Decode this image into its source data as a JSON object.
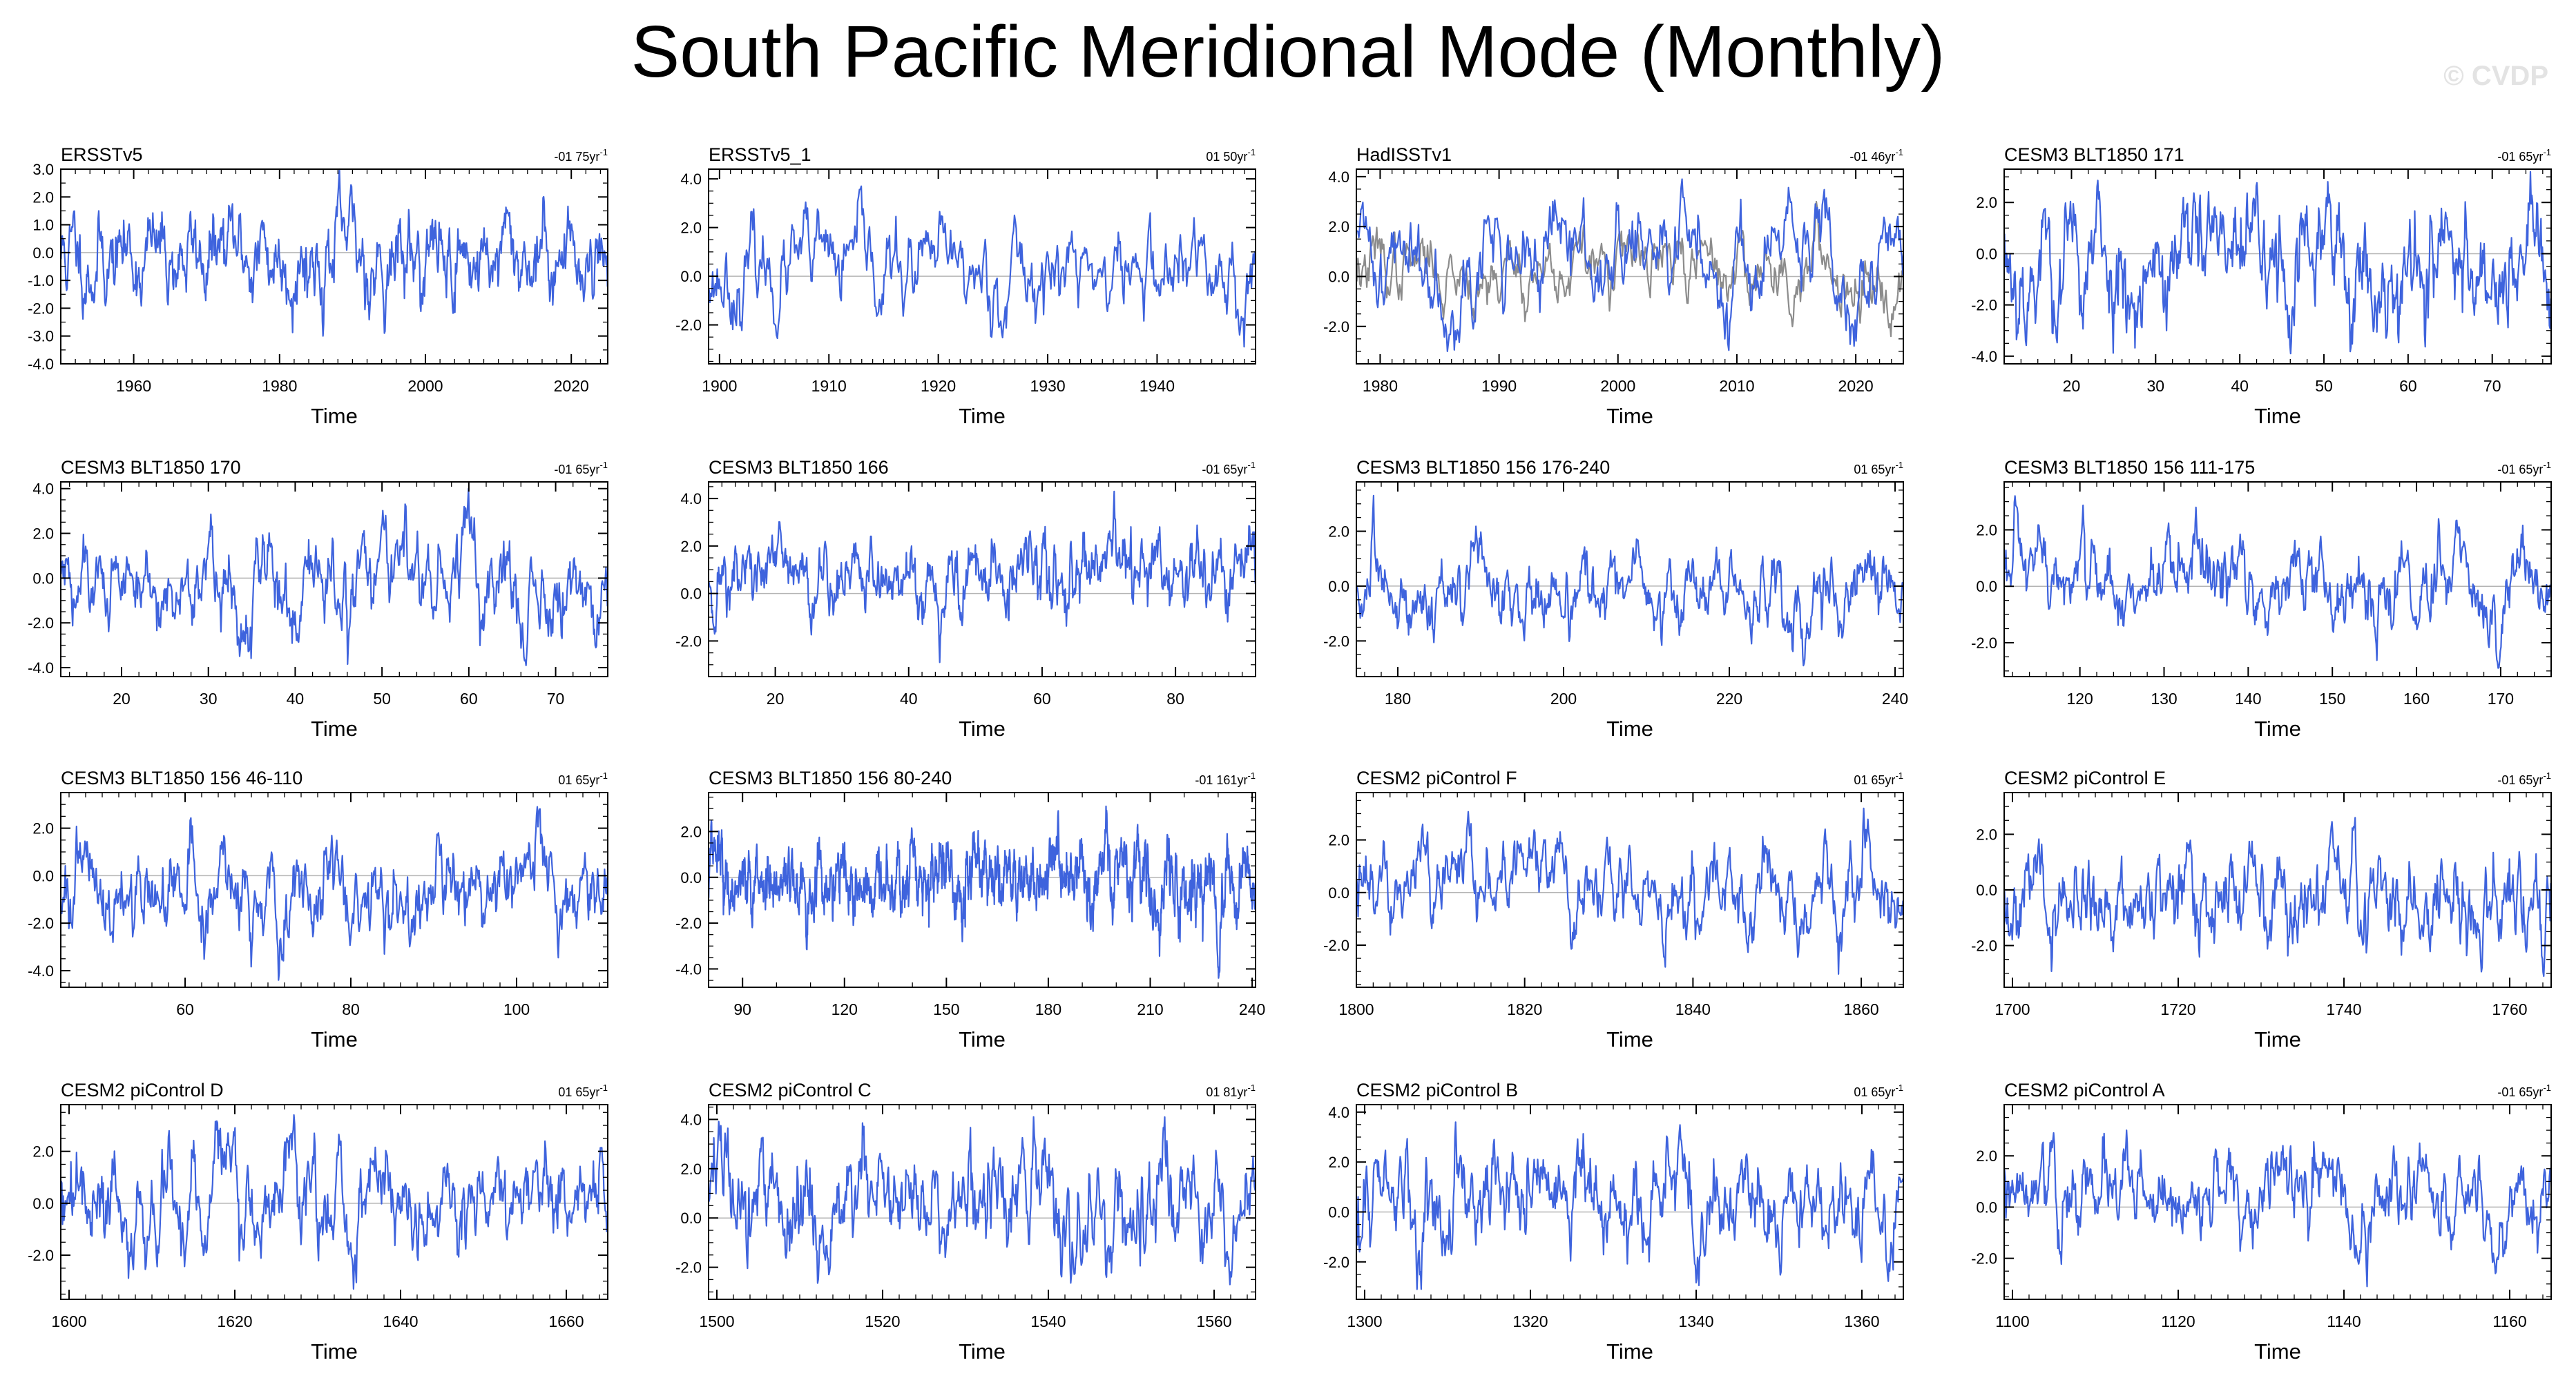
{
  "page": {
    "title": "South Pacific Meridional Mode (Monthly)",
    "watermark": "© CVDP"
  },
  "style": {
    "line_color": "#3e63dd",
    "obs_overlay_color": "#8c8c8c",
    "axis_color": "#000000",
    "zero_line_color": "#b4b4b4"
  },
  "chart_data": [
    {
      "type": "line",
      "title": "ERSSTv5",
      "trend_value": "-01 75",
      "trend_unit": "yr",
      "trend_exp": "-1",
      "xlabel": "Time",
      "xlim": [
        1950,
        2025
      ],
      "ylim": [
        -4.0,
        3.0
      ],
      "xticks": [
        1960,
        1980,
        2000,
        2020
      ],
      "yticks": [
        3.0,
        2.0,
        1.0,
        0.0,
        -1.0,
        -2.0,
        -3.0,
        -4.0
      ],
      "ytick_labels": [
        "3.0",
        "2.0",
        "1.0",
        "0.0",
        "-1.0",
        "-2.0",
        "-3.0",
        "-4.0"
      ],
      "series": [
        {
          "color": "#3e63dd",
          "amp": 0.95,
          "min": -3.0,
          "max": 3.0,
          "n": 900,
          "seed": 11
        }
      ]
    },
    {
      "type": "line",
      "title": "ERSSTv5_1",
      "trend_value": "01 50",
      "trend_unit": "yr",
      "trend_exp": "-1",
      "xlabel": "Time",
      "xlim": [
        1899,
        1949
      ],
      "ylim": [
        -3.6,
        4.4
      ],
      "xticks": [
        1900,
        1910,
        1920,
        1930,
        1940
      ],
      "yticks": [
        4.0,
        2.0,
        0.0,
        -2.0
      ],
      "ytick_labels": [
        "4.0",
        "2.0",
        "0.0",
        "-2.0"
      ],
      "series": [
        {
          "color": "#3e63dd",
          "amp": 0.9,
          "min": -2.9,
          "max": 3.7,
          "n": 600,
          "seed": 23
        }
      ]
    },
    {
      "type": "line",
      "title": "HadISSTv1",
      "trend_value": "-01 46",
      "trend_unit": "yr",
      "trend_exp": "-1",
      "xlabel": "Time",
      "xlim": [
        1978,
        2024
      ],
      "ylim": [
        -3.5,
        4.3
      ],
      "xticks": [
        1980,
        1990,
        2000,
        2010,
        2020
      ],
      "yticks": [
        4.0,
        2.0,
        0.0,
        -2.0
      ],
      "ytick_labels": [
        "4.0",
        "2.0",
        "0.0",
        "-2.0"
      ],
      "series": [
        {
          "color": "#8c8c8c",
          "amp": 0.9,
          "min": -2.4,
          "max": 3.0,
          "n": 550,
          "seed": 37
        },
        {
          "color": "#3e63dd",
          "amp": 0.95,
          "min": -3.0,
          "max": 3.9,
          "n": 550,
          "seed": 41
        }
      ]
    },
    {
      "type": "line",
      "title": "CESM3 BLT1850 171",
      "trend_value": "-01 65",
      "trend_unit": "yr",
      "trend_exp": "-1",
      "xlabel": "Time",
      "xlim": [
        12,
        77
      ],
      "ylim": [
        -4.3,
        3.3
      ],
      "xticks": [
        20,
        30,
        40,
        50,
        60,
        70
      ],
      "yticks": [
        2.0,
        0.0,
        -2.0,
        -4.0
      ],
      "ytick_labels": [
        "2.0",
        "0.0",
        "-2.0",
        "-4.0"
      ],
      "series": [
        {
          "color": "#3e63dd",
          "amp": 0.9,
          "min": -3.9,
          "max": 3.2,
          "n": 780,
          "seed": 53
        }
      ]
    },
    {
      "type": "line",
      "title": "CESM3 BLT1850 170",
      "trend_value": "-01 65",
      "trend_unit": "yr",
      "trend_exp": "-1",
      "xlabel": "Time",
      "xlim": [
        13,
        76
      ],
      "ylim": [
        -4.4,
        4.3
      ],
      "xticks": [
        20,
        30,
        40,
        50,
        60,
        70
      ],
      "yticks": [
        4.0,
        2.0,
        0.0,
        -2.0,
        -4.0
      ],
      "ytick_labels": [
        "4.0",
        "2.0",
        "0.0",
        "-2.0",
        "-4.0"
      ],
      "series": [
        {
          "color": "#3e63dd",
          "amp": 0.95,
          "min": -3.9,
          "max": 4.0,
          "n": 760,
          "seed": 61
        }
      ]
    },
    {
      "type": "line",
      "title": "CESM3 BLT1850 166",
      "trend_value": "-01 65",
      "trend_unit": "yr",
      "trend_exp": "-1",
      "xlabel": "Time",
      "xlim": [
        10,
        92
      ],
      "ylim": [
        -3.5,
        4.7
      ],
      "xticks": [
        20,
        40,
        60,
        80
      ],
      "yticks": [
        4.0,
        2.0,
        0.0,
        -2.0
      ],
      "ytick_labels": [
        "4.0",
        "2.0",
        "0.0",
        "-2.0"
      ],
      "series": [
        {
          "color": "#3e63dd",
          "amp": 0.95,
          "min": -2.9,
          "max": 4.3,
          "n": 950,
          "seed": 71
        }
      ]
    },
    {
      "type": "line",
      "title": "CESM3 BLT1850 156 176-240",
      "trend_value": "01 65",
      "trend_unit": "yr",
      "trend_exp": "-1",
      "xlabel": "Time",
      "xlim": [
        175,
        241
      ],
      "ylim": [
        -3.3,
        3.8
      ],
      "xticks": [
        180,
        200,
        220,
        240
      ],
      "yticks": [
        2.0,
        0.0,
        -2.0
      ],
      "ytick_labels": [
        "2.0",
        "0.0",
        "-2.0"
      ],
      "series": [
        {
          "color": "#3e63dd",
          "amp": 0.9,
          "min": -2.9,
          "max": 3.3,
          "n": 780,
          "seed": 83
        }
      ]
    },
    {
      "type": "line",
      "title": "CESM3 BLT1850 156 111-175",
      "trend_value": "-01 65",
      "trend_unit": "yr",
      "trend_exp": "-1",
      "xlabel": "Time",
      "xlim": [
        111,
        176
      ],
      "ylim": [
        -3.2,
        3.7
      ],
      "xticks": [
        120,
        130,
        140,
        150,
        160,
        170
      ],
      "yticks": [
        2.0,
        0.0,
        -2.0
      ],
      "ytick_labels": [
        "2.0",
        "0.0",
        "-2.0"
      ],
      "series": [
        {
          "color": "#3e63dd",
          "amp": 0.9,
          "min": -2.9,
          "max": 3.2,
          "n": 780,
          "seed": 97
        }
      ]
    },
    {
      "type": "line",
      "title": "CESM3 BLT1850 156 46-110",
      "trend_value": "01 65",
      "trend_unit": "yr",
      "trend_exp": "-1",
      "xlabel": "Time",
      "xlim": [
        45,
        111
      ],
      "ylim": [
        -4.7,
        3.5
      ],
      "xticks": [
        60,
        80,
        100
      ],
      "yticks": [
        2.0,
        0.0,
        -2.0,
        -4.0
      ],
      "ytick_labels": [
        "2.0",
        "0.0",
        "-2.0",
        "-4.0"
      ],
      "series": [
        {
          "color": "#3e63dd",
          "amp": 0.9,
          "min": -4.4,
          "max": 2.9,
          "n": 780,
          "seed": 101
        }
      ]
    },
    {
      "type": "line",
      "title": "CESM3 BLT1850 156 80-240",
      "trend_value": "-01 161",
      "trend_unit": "yr",
      "trend_exp": "-1",
      "xlabel": "Time",
      "xlim": [
        80,
        241
      ],
      "ylim": [
        -4.8,
        3.7
      ],
      "xticks": [
        90,
        120,
        150,
        180,
        210,
        240
      ],
      "yticks": [
        2.0,
        0.0,
        -2.0,
        -4.0
      ],
      "ytick_labels": [
        "2.0",
        "0.0",
        "-2.0",
        "-4.0"
      ],
      "series": [
        {
          "color": "#3e63dd",
          "amp": 0.95,
          "min": -4.4,
          "max": 3.1,
          "n": 1900,
          "seed": 113
        }
      ]
    },
    {
      "type": "line",
      "title": "CESM2 piControl F",
      "trend_value": "01 65",
      "trend_unit": "yr",
      "trend_exp": "-1",
      "xlabel": "Time",
      "xlim": [
        1800,
        1865
      ],
      "ylim": [
        -3.6,
        3.8
      ],
      "xticks": [
        1800,
        1820,
        1840,
        1860
      ],
      "yticks": [
        2.0,
        0.0,
        -2.0
      ],
      "ytick_labels": [
        "2.0",
        "0.0",
        "-2.0"
      ],
      "series": [
        {
          "color": "#3e63dd",
          "amp": 0.9,
          "min": -3.1,
          "max": 3.2,
          "n": 780,
          "seed": 127
        }
      ]
    },
    {
      "type": "line",
      "title": "CESM2 piControl E",
      "trend_value": "-01 65",
      "trend_unit": "yr",
      "trend_exp": "-1",
      "xlabel": "Time",
      "xlim": [
        1699,
        1765
      ],
      "ylim": [
        -3.5,
        3.5
      ],
      "xticks": [
        1700,
        1720,
        1740,
        1760
      ],
      "yticks": [
        2.0,
        0.0,
        -2.0
      ],
      "ytick_labels": [
        "2.0",
        "0.0",
        "-2.0"
      ],
      "series": [
        {
          "color": "#3e63dd",
          "amp": 0.9,
          "min": -3.1,
          "max": 2.6,
          "n": 780,
          "seed": 131
        }
      ]
    },
    {
      "type": "line",
      "title": "CESM2 piControl D",
      "trend_value": "01 65",
      "trend_unit": "yr",
      "trend_exp": "-1",
      "xlabel": "Time",
      "xlim": [
        1599,
        1665
      ],
      "ylim": [
        -3.7,
        3.8
      ],
      "xticks": [
        1600,
        1620,
        1640,
        1660
      ],
      "yticks": [
        2.0,
        0.0,
        -2.0
      ],
      "ytick_labels": [
        "2.0",
        "0.0",
        "-2.0"
      ],
      "series": [
        {
          "color": "#3e63dd",
          "amp": 0.9,
          "min": -3.3,
          "max": 3.4,
          "n": 780,
          "seed": 139
        }
      ]
    },
    {
      "type": "line",
      "title": "CESM2 piControl C",
      "trend_value": "01 81",
      "trend_unit": "yr",
      "trend_exp": "-1",
      "xlabel": "Time",
      "xlim": [
        1499,
        1565
      ],
      "ylim": [
        -3.3,
        4.6
      ],
      "xticks": [
        1500,
        1520,
        1540,
        1560
      ],
      "yticks": [
        4.0,
        2.0,
        0.0,
        -2.0
      ],
      "ytick_labels": [
        "4.0",
        "2.0",
        "0.0",
        "-2.0"
      ],
      "series": [
        {
          "color": "#3e63dd",
          "amp": 0.9,
          "min": -2.7,
          "max": 4.1,
          "n": 780,
          "seed": 149
        }
      ]
    },
    {
      "type": "line",
      "title": "CESM2 piControl B",
      "trend_value": "01 65",
      "trend_unit": "yr",
      "trend_exp": "-1",
      "xlabel": "Time",
      "xlim": [
        1299,
        1365
      ],
      "ylim": [
        -3.5,
        4.3
      ],
      "xticks": [
        1300,
        1320,
        1340,
        1360
      ],
      "yticks": [
        4.0,
        2.0,
        0.0,
        -2.0
      ],
      "ytick_labels": [
        "4.0",
        "2.0",
        "0.0",
        "-2.0"
      ],
      "series": [
        {
          "color": "#3e63dd",
          "amp": 0.9,
          "min": -3.1,
          "max": 3.6,
          "n": 780,
          "seed": 157
        }
      ]
    },
    {
      "type": "line",
      "title": "CESM2 piControl A",
      "trend_value": "-01 65",
      "trend_unit": "yr",
      "trend_exp": "-1",
      "xlabel": "Time",
      "xlim": [
        1099,
        1165
      ],
      "ylim": [
        -3.6,
        4.0
      ],
      "xticks": [
        1100,
        1120,
        1140,
        1160
      ],
      "yticks": [
        2.0,
        0.0,
        -2.0
      ],
      "ytick_labels": [
        "2.0",
        "0.0",
        "-2.0"
      ],
      "series": [
        {
          "color": "#3e63dd",
          "amp": 0.9,
          "min": -3.1,
          "max": 3.0,
          "n": 780,
          "seed": 163
        }
      ]
    }
  ]
}
